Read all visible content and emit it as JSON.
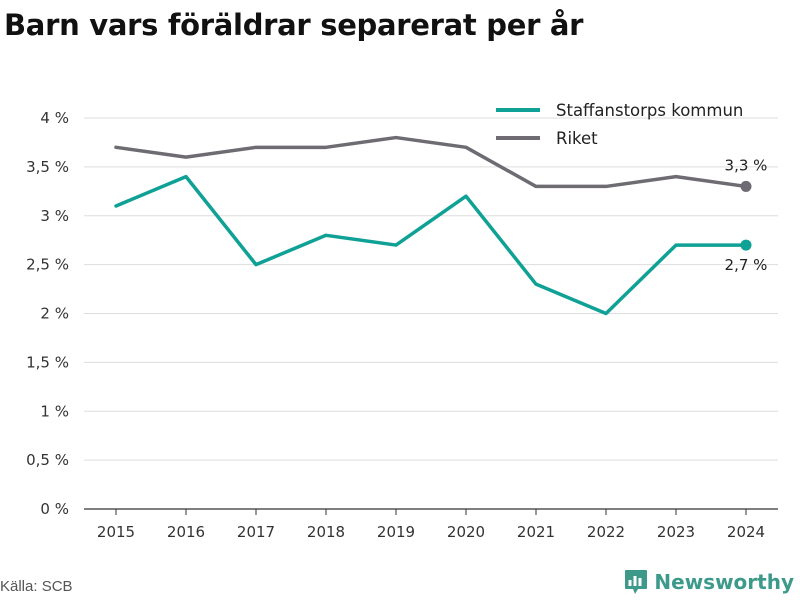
{
  "title": "Barn vars föräldrar separerat per år",
  "source": "Källa: SCB",
  "brand": {
    "name": "Newsworthy",
    "icon": "bar-chart-logo-icon",
    "color": "#3d9a8b"
  },
  "chart_data": {
    "type": "line",
    "title": "Barn vars föräldrar separerat per år",
    "xlabel": "",
    "ylabel": "",
    "categories": [
      "2015",
      "2016",
      "2017",
      "2018",
      "2019",
      "2020",
      "2021",
      "2022",
      "2023",
      "2024"
    ],
    "ylim": [
      0,
      4
    ],
    "yticks": [
      0,
      0.5,
      1,
      1.5,
      2,
      2.5,
      3,
      3.5,
      4
    ],
    "ytick_labels": [
      "0 %",
      "0,5 %",
      "1 %",
      "1,5 %",
      "2 %",
      "2,5 %",
      "3 %",
      "3,5 %",
      "4 %"
    ],
    "grid": true,
    "legend_position": "top-right",
    "series": [
      {
        "name": "Staffanstorps kommun",
        "color": "#0fa195",
        "values": [
          3.1,
          3.4,
          2.5,
          2.8,
          2.7,
          3.2,
          2.3,
          2.0,
          2.7,
          2.7
        ],
        "end_label": "2,7 %"
      },
      {
        "name": "Riket",
        "color": "#6e6c72",
        "values": [
          3.7,
          3.6,
          3.7,
          3.7,
          3.8,
          3.7,
          3.3,
          3.3,
          3.4,
          3.3
        ],
        "end_label": "3,3 %"
      }
    ]
  }
}
